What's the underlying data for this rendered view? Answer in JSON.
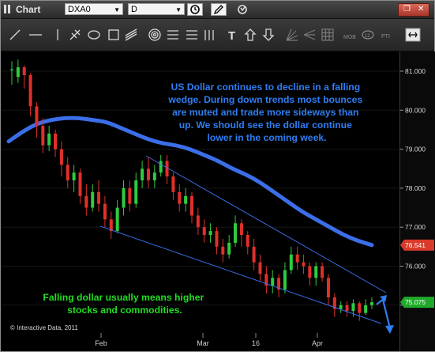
{
  "window": {
    "title": "Chart",
    "symbol": "DXA0",
    "period": "D"
  },
  "toolbar": {
    "tools": [
      "line-tool",
      "horizontal-line-tool",
      "vertical-line-tool",
      "fork-tool",
      "ellipse-tool",
      "rectangle-tool",
      "channel-tool",
      "fibonacci-circle-tool",
      "fibonacci-lines-tool",
      "parallel-lines-tool",
      "text-tool",
      "arrow-up-tool",
      "arrow-down-tool",
      "fan-tool",
      "speed-lines-tool",
      "grid-tool",
      "mob-tool",
      "number-tool",
      "pti-tool",
      "collapse-tool"
    ],
    "mob_label": "MOB",
    "pti_label": "PTI"
  },
  "annotations": {
    "main_text_lines": [
      "US Dollar continues to decline in a falling",
      "wedge. During down trends most bounces",
      "are muted and trade more sideways than",
      "up. We should see the dollar continue",
      "lower in the coming week."
    ],
    "green_text_lines": [
      "Falling dollar usually means higher",
      "stocks and commodities."
    ],
    "copyright": "© Interactive Data, 2011"
  },
  "colors": {
    "up_candle": "#2ecc40",
    "down_candle": "#e0302a",
    "moving_average": "#3b6ee8",
    "trendline": "#3b6ee8",
    "annotation_blue": "#2f7df2",
    "annotation_green": "#22dd22",
    "ma_badge": "#d93a2a",
    "price_badge": "#1faa2a"
  },
  "chart_data": {
    "type": "candlestick",
    "x_labels": [
      "Feb",
      "Mar",
      "16",
      "Apr"
    ],
    "y_ticks": [
      75.0,
      76.0,
      77.0,
      78.0,
      79.0,
      80.0,
      81.0
    ],
    "ylim": [
      74.2,
      81.7
    ],
    "price_badges": {
      "moving_average": "76.541",
      "last_price": "75.075"
    },
    "moving_average": [
      79.2,
      79.45,
      79.65,
      79.75,
      79.8,
      79.8,
      79.75,
      79.7,
      79.55,
      79.4,
      79.25,
      79.15,
      79.1,
      79.0,
      78.85,
      78.7,
      78.5,
      78.35,
      78.15,
      77.9,
      77.65,
      77.4,
      77.2,
      77.0,
      76.8,
      76.65,
      76.541
    ],
    "candles": [
      [
        81.05,
        81.05,
        81.25,
        80.65
      ],
      [
        80.85,
        81.1,
        81.3,
        80.7
      ],
      [
        81.1,
        80.9,
        81.15,
        80.55
      ],
      [
        80.9,
        80.1,
        80.95,
        79.85
      ],
      [
        80.1,
        79.6,
        80.2,
        79.3
      ],
      [
        79.6,
        79.1,
        79.8,
        78.9
      ],
      [
        79.1,
        79.4,
        79.6,
        78.95
      ],
      [
        79.4,
        79.0,
        79.5,
        78.8
      ],
      [
        79.0,
        78.6,
        79.2,
        78.3
      ],
      [
        78.6,
        78.2,
        78.8,
        78.0
      ],
      [
        78.2,
        78.4,
        78.6,
        77.9
      ],
      [
        78.4,
        77.8,
        78.5,
        77.6
      ],
      [
        77.8,
        77.5,
        78.1,
        77.3
      ],
      [
        77.5,
        77.9,
        78.1,
        77.4
      ],
      [
        77.9,
        77.6,
        78.2,
        77.4
      ],
      [
        77.6,
        77.2,
        77.8,
        77.0
      ],
      [
        77.2,
        76.9,
        77.4,
        76.7
      ],
      [
        76.9,
        77.5,
        77.7,
        76.85
      ],
      [
        77.5,
        78.0,
        78.2,
        77.3
      ],
      [
        78.0,
        77.6,
        78.2,
        77.4
      ],
      [
        77.6,
        78.2,
        78.4,
        77.5
      ],
      [
        78.2,
        78.5,
        78.7,
        78.0
      ],
      [
        78.5,
        78.2,
        78.8,
        78.0
      ],
      [
        78.2,
        78.4,
        78.6,
        78.0
      ],
      [
        78.4,
        78.7,
        78.85,
        78.3
      ],
      [
        78.7,
        78.3,
        78.85,
        78.1
      ],
      [
        78.3,
        77.9,
        78.4,
        77.7
      ],
      [
        77.9,
        77.6,
        78.1,
        77.4
      ],
      [
        77.6,
        77.8,
        78.0,
        77.4
      ],
      [
        77.8,
        77.3,
        77.9,
        77.1
      ],
      [
        77.3,
        77.0,
        77.5,
        76.8
      ],
      [
        77.0,
        76.8,
        77.2,
        76.6
      ],
      [
        76.8,
        76.9,
        77.1,
        76.6
      ],
      [
        76.9,
        76.5,
        77.0,
        76.3
      ],
      [
        76.5,
        76.3,
        76.7,
        76.1
      ],
      [
        76.3,
        76.6,
        76.8,
        76.2
      ],
      [
        76.6,
        77.1,
        77.3,
        76.5
      ],
      [
        77.1,
        76.8,
        77.2,
        76.5
      ],
      [
        76.8,
        76.5,
        76.9,
        76.3
      ],
      [
        76.5,
        76.1,
        76.7,
        75.9
      ],
      [
        76.1,
        75.8,
        76.3,
        75.6
      ],
      [
        75.8,
        75.5,
        76.0,
        75.3
      ],
      [
        75.5,
        75.7,
        75.9,
        75.3
      ],
      [
        75.7,
        75.4,
        75.8,
        75.2
      ],
      [
        75.4,
        75.9,
        76.1,
        75.3
      ],
      [
        75.9,
        76.3,
        76.5,
        75.8
      ],
      [
        76.3,
        76.1,
        76.5,
        75.9
      ],
      [
        76.1,
        76.0,
        76.3,
        75.8
      ],
      [
        76.0,
        75.7,
        76.1,
        75.5
      ],
      [
        75.7,
        76.0,
        76.1,
        75.5
      ],
      [
        76.0,
        75.7,
        76.1,
        75.6
      ],
      [
        75.7,
        75.2,
        75.8,
        75.0
      ],
      [
        75.2,
        74.9,
        75.3,
        74.7
      ],
      [
        74.9,
        75.0,
        75.1,
        74.8
      ],
      [
        75.0,
        74.85,
        75.1,
        74.7
      ],
      [
        74.85,
        75.05,
        75.15,
        74.7
      ],
      [
        75.05,
        74.8,
        75.1,
        74.6
      ],
      [
        74.8,
        75.0,
        75.15,
        74.75
      ],
      [
        75.0,
        75.075,
        75.2,
        74.9
      ]
    ]
  }
}
